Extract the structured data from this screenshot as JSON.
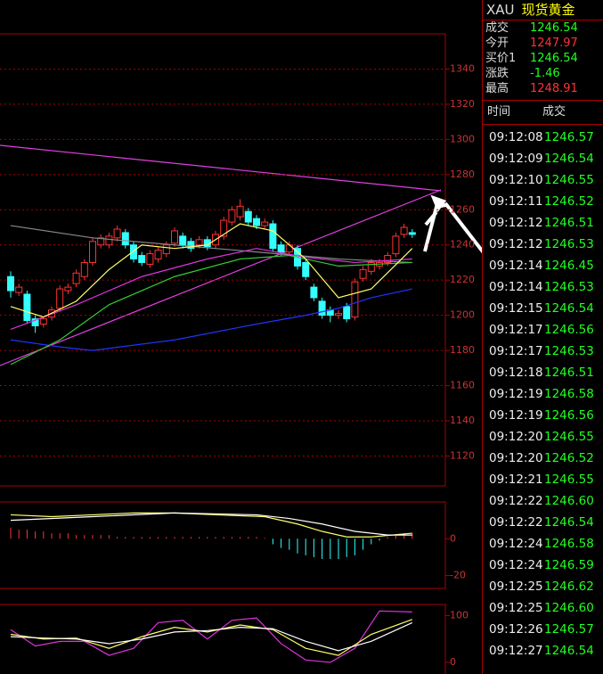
{
  "chart_data": [
    {
      "type": "candlestick",
      "candles": {
        "open": [
          1222,
          1213,
          1212,
          1198,
          1195,
          1199,
          1204,
          1214,
          1218,
          1222,
          1230,
          1240,
          1240,
          1244,
          1247,
          1240,
          1234,
          1229,
          1232,
          1235,
          1241,
          1245,
          1242,
          1240,
          1243,
          1240,
          1245,
          1253,
          1256,
          1259,
          1255,
          1251,
          1252,
          1240,
          1236,
          1238,
          1230,
          1216,
          1208,
          1203,
          1200,
          1205,
          1199,
          1221,
          1225,
          1228,
          1230,
          1235,
          1246,
          1247
        ],
        "high": [
          1225,
          1218,
          1214,
          1200,
          1199,
          1205,
          1217,
          1218,
          1226,
          1232,
          1244,
          1246,
          1247,
          1251,
          1249,
          1242,
          1236,
          1237,
          1239,
          1242,
          1250,
          1247,
          1244,
          1245,
          1245,
          1248,
          1256,
          1262,
          1266,
          1261,
          1257,
          1255,
          1254,
          1242,
          1242,
          1240,
          1232,
          1218,
          1210,
          1205,
          1203,
          1207,
          1221,
          1228,
          1232,
          1232,
          1236,
          1247,
          1252,
          1249
        ],
        "low": [
          1210,
          1211,
          1195,
          1190,
          1193,
          1197,
          1202,
          1212,
          1216,
          1220,
          1228,
          1238,
          1238,
          1242,
          1238,
          1230,
          1228,
          1227,
          1230,
          1233,
          1239,
          1238,
          1236,
          1238,
          1237,
          1238,
          1243,
          1251,
          1254,
          1251,
          1249,
          1249,
          1236,
          1234,
          1234,
          1226,
          1220,
          1208,
          1198,
          1196,
          1198,
          1196,
          1197,
          1219,
          1223,
          1226,
          1228,
          1233,
          1244,
          1244
        ],
        "close": [
          1214,
          1216,
          1197,
          1194,
          1198,
          1203,
          1215,
          1216,
          1224,
          1230,
          1242,
          1244,
          1245,
          1249,
          1240,
          1232,
          1230,
          1235,
          1237,
          1240,
          1248,
          1240,
          1238,
          1243,
          1239,
          1246,
          1254,
          1260,
          1262,
          1253,
          1251,
          1253,
          1238,
          1236,
          1240,
          1228,
          1222,
          1210,
          1200,
          1200,
          1201,
          1198,
          1219,
          1226,
          1230,
          1230,
          1234,
          1245,
          1250,
          1246
        ]
      },
      "series": [
        {
          "color": "#888888",
          "x": [
            0,
            10,
            20,
            30,
            40,
            49
          ],
          "values": [
            1251,
            1244,
            1240,
            1236,
            1232,
            1230
          ]
        },
        {
          "color": "#2233ff",
          "x": [
            0,
            6,
            10,
            20,
            30,
            36,
            40,
            44,
            49
          ],
          "values": [
            1186,
            1182,
            1180,
            1186,
            1195,
            1200,
            1204,
            1210,
            1215
          ]
        },
        {
          "color": "#dd33dd",
          "x": [
            0,
            8,
            16,
            24,
            30,
            36,
            42,
            49
          ],
          "values": [
            1192,
            1206,
            1222,
            1232,
            1238,
            1233,
            1230,
            1232
          ]
        },
        {
          "color": "#33cc33",
          "x": [
            0,
            6,
            12,
            20,
            28,
            34,
            40,
            49
          ],
          "values": [
            1172,
            1186,
            1206,
            1222,
            1232,
            1234,
            1228,
            1230
          ]
        },
        {
          "color": "#ffff66",
          "x": [
            0,
            4,
            8,
            12,
            16,
            20,
            24,
            28,
            32,
            36,
            40,
            44,
            49
          ],
          "values": [
            1205,
            1199,
            1208,
            1226,
            1240,
            1238,
            1240,
            1252,
            1248,
            1232,
            1210,
            1215,
            1238
          ]
        }
      ],
      "ylim": [
        1103,
        1360
      ],
      "yticks": [
        1120,
        1140,
        1160,
        1180,
        1200,
        1220,
        1240,
        1260,
        1280,
        1300,
        1320,
        1340
      ],
      "up_color": "#ff3333",
      "down_color": "#33ffff",
      "grid": true
    },
    {
      "type": "macd",
      "hist": [
        6,
        5,
        5,
        4,
        4,
        3,
        3,
        3,
        2,
        2,
        2,
        2,
        2,
        1,
        1,
        1,
        1,
        1,
        1,
        1,
        1,
        1,
        1,
        1,
        1,
        1,
        1,
        1,
        1,
        1,
        1,
        0.5,
        -3,
        -5,
        -6,
        -8,
        -9,
        -10,
        -11,
        -11,
        -11,
        -10,
        -9,
        -6,
        -3,
        -1,
        1,
        2,
        3,
        3
      ],
      "series": [
        {
          "color": "#ffff66",
          "x": [
            0,
            5,
            10,
            15,
            20,
            25,
            31,
            35,
            38,
            41,
            44,
            49
          ],
          "values": [
            13,
            12,
            13,
            14,
            14,
            13,
            12,
            8,
            4,
            1,
            1,
            3
          ]
        },
        {
          "color": "#ffffff",
          "x": [
            0,
            10,
            20,
            30,
            34,
            38,
            42,
            46,
            49
          ],
          "values": [
            10,
            12,
            14,
            13,
            11,
            8,
            4,
            2,
            2
          ]
        }
      ],
      "ylim": [
        -27,
        20
      ],
      "yticks": [
        0,
        -20
      ],
      "up_color": "#ff3333",
      "down_color": "#33ffff"
    },
    {
      "type": "kdj",
      "series": [
        {
          "color": "#dd33dd",
          "x": [
            0,
            3,
            6,
            9,
            12,
            15,
            18,
            21,
            24,
            27,
            30,
            33,
            36,
            39,
            42,
            45,
            49
          ],
          "values": [
            70,
            35,
            45,
            45,
            15,
            30,
            85,
            90,
            50,
            90,
            95,
            40,
            5,
            0,
            30,
            110,
            108
          ]
        },
        {
          "color": "#ffff66",
          "x": [
            0,
            4,
            8,
            12,
            16,
            20,
            24,
            28,
            32,
            36,
            40,
            44,
            49
          ],
          "values": [
            60,
            50,
            52,
            30,
            55,
            75,
            65,
            80,
            70,
            30,
            15,
            60,
            92
          ]
        },
        {
          "color": "#ffffff",
          "x": [
            0,
            4,
            8,
            12,
            16,
            20,
            24,
            28,
            32,
            36,
            40,
            44,
            49
          ],
          "values": [
            55,
            52,
            50,
            40,
            50,
            65,
            68,
            75,
            72,
            45,
            25,
            45,
            85
          ]
        }
      ],
      "ylim": [
        -25,
        124
      ],
      "yticks": [
        100,
        0
      ]
    }
  ],
  "quote_panel": {
    "symbol": "XAU",
    "name": "现货黄金",
    "fields": [
      [
        "成交",
        "1246.54"
      ],
      [
        "今开",
        "1247.97"
      ],
      [
        "买价1",
        "1246.54"
      ],
      [
        "涨跌",
        "-1.46"
      ],
      [
        "最高",
        "1248.91"
      ]
    ],
    "columns": [
      "时间",
      "成交"
    ],
    "trades": [
      [
        "09:12:08",
        "1246.57"
      ],
      [
        "09:12:09",
        "1246.54"
      ],
      [
        "09:12:10",
        "1246.55"
      ],
      [
        "09:12:11",
        "1246.52"
      ],
      [
        "09:12:12",
        "1246.51"
      ],
      [
        "09:12:12",
        "1246.53"
      ],
      [
        "09:12:14",
        "1246.45"
      ],
      [
        "09:12:14",
        "1246.53"
      ],
      [
        "09:12:15",
        "1246.54"
      ],
      [
        "09:12:17",
        "1246.56"
      ],
      [
        "09:12:17",
        "1246.53"
      ],
      [
        "09:12:18",
        "1246.51"
      ],
      [
        "09:12:19",
        "1246.58"
      ],
      [
        "09:12:19",
        "1246.56"
      ],
      [
        "09:12:20",
        "1246.55"
      ],
      [
        "09:12:20",
        "1246.52"
      ],
      [
        "09:12:21",
        "1246.55"
      ],
      [
        "09:12:22",
        "1246.60"
      ],
      [
        "09:12:22",
        "1246.54"
      ],
      [
        "09:12:24",
        "1246.58"
      ],
      [
        "09:12:24",
        "1246.59"
      ],
      [
        "09:12:25",
        "1246.62"
      ],
      [
        "09:12:25",
        "1246.60"
      ],
      [
        "09:12:26",
        "1246.57"
      ],
      [
        "09:12:27",
        "1246.54"
      ]
    ]
  }
}
